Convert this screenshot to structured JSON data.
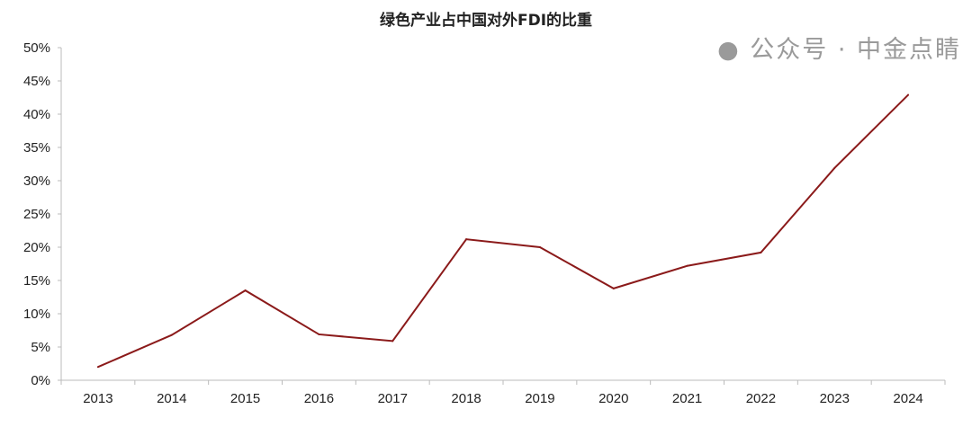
{
  "chart_data": {
    "type": "line",
    "title": "绿色产业占中国对外FDI的比重",
    "xlabel": "",
    "ylabel": "",
    "categories": [
      "2013",
      "2014",
      "2015",
      "2016",
      "2017",
      "2018",
      "2019",
      "2020",
      "2021",
      "2022",
      "2023",
      "2024"
    ],
    "series": [
      {
        "values": [
          2.0,
          6.8,
          13.5,
          6.9,
          5.9,
          21.2,
          20.0,
          13.8,
          17.2,
          19.2,
          31.9,
          42.9
        ],
        "color": "#8b1a1a"
      }
    ],
    "ylim": [
      0,
      50
    ],
    "yticks": [
      "0%",
      "5%",
      "10%",
      "15%",
      "20%",
      "25%",
      "30%",
      "35%",
      "40%",
      "45%",
      "50%"
    ],
    "grid": false,
    "legend": "none"
  },
  "watermark": "公众号 · 中金点睛"
}
